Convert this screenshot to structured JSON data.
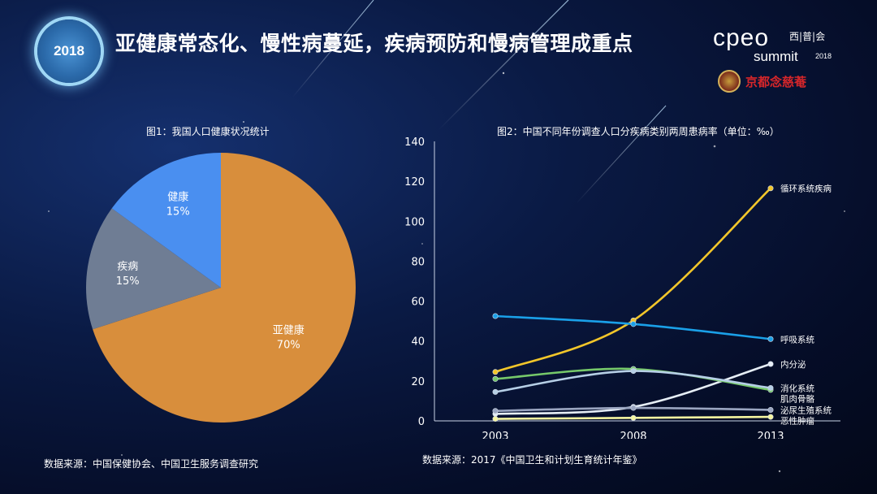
{
  "header": {
    "badge_year": "2018",
    "title": "亚健康常态化、慢性病蔓延，疾病预防和慢病管理成重点",
    "logo_main": "cpeo",
    "logo_cn": "西|普|会",
    "logo_sub": "summit",
    "logo_year": "2018",
    "sponsor_name": "京都念慈菴"
  },
  "fig1": {
    "title": "图1：我国人口健康状况统计"
  },
  "fig2": {
    "title": "图2：中国不同年份调查人口分疾病类别两周患病率（单位：‰）"
  },
  "sources": {
    "left": "数据来源：中国保健协会、中国卫生服务调查研究",
    "right": "数据来源：2017《中国卫生和计划生育统计年鉴》"
  },
  "colors": {
    "orange": "#d88e3c",
    "gray": "#6f7d94",
    "blue": "#4a8ff0"
  },
  "chart_data": [
    {
      "type": "pie",
      "title": "图1：我国人口健康状况统计",
      "slices": [
        {
          "label": "健康",
          "value": 15,
          "display": "15%",
          "color": "#4a8ff0"
        },
        {
          "label": "疾病",
          "value": 15,
          "display": "15%",
          "color": "#6f7d94"
        },
        {
          "label": "亚健康",
          "value": 70,
          "display": "70%",
          "color": "#d88e3c"
        }
      ]
    },
    {
      "type": "line",
      "title": "图2：中国不同年份调查人口分疾病类别两周患病率（单位：‰）",
      "categories": [
        "2003",
        "2008",
        "2013"
      ],
      "ylim": [
        0,
        140
      ],
      "yticks": [
        0,
        20,
        40,
        60,
        80,
        100,
        120,
        140
      ],
      "grid": false,
      "series": [
        {
          "name": "循环系统疾病",
          "values": [
            24.5,
            50.3,
            116.5
          ],
          "color": "#f2c62a"
        },
        {
          "name": "呼吸系统",
          "values": [
            52.5,
            48.5,
            41.0
          ],
          "color": "#1aa0e8"
        },
        {
          "name": "内分泌",
          "values": [
            3.5,
            7.0,
            28.5
          ],
          "color": "#e6eef6"
        },
        {
          "name": "肌肉骨骼",
          "values": [
            21.0,
            26.0,
            15.5
          ],
          "color": "#76c96a"
        },
        {
          "name": "消化系统",
          "values": [
            14.5,
            25.0,
            16.5
          ],
          "color": "#b6cfe6"
        },
        {
          "name": "泌尿生殖系统",
          "values": [
            5.0,
            6.5,
            5.5
          ],
          "color": "#9aa5c0"
        },
        {
          "name": "恶性肿瘤",
          "values": [
            1.0,
            1.5,
            2.0
          ],
          "color": "#f5f5a0"
        }
      ]
    }
  ]
}
